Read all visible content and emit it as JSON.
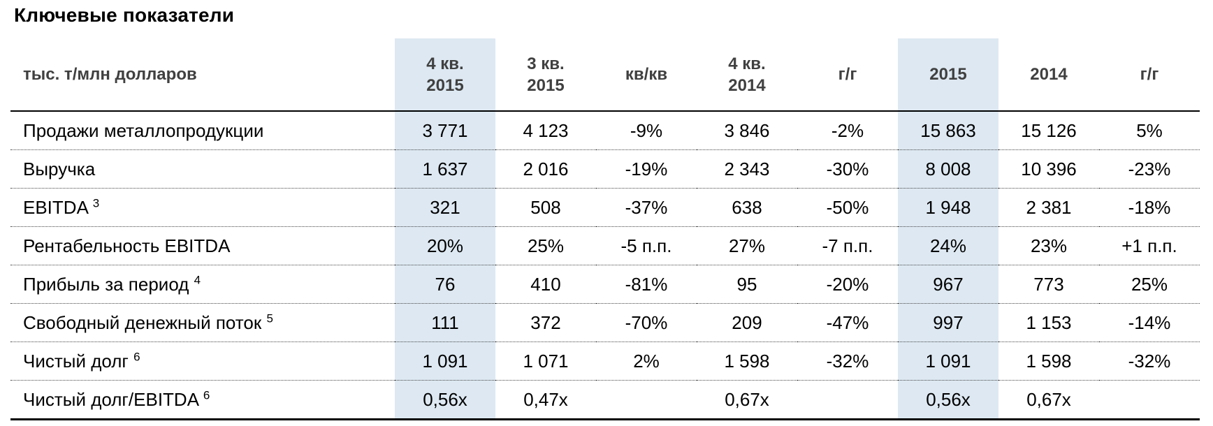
{
  "title": "Ключевые показатели",
  "colors": {
    "highlight": "#dde8f2",
    "header_text": "#404040",
    "body_text": "#000000"
  },
  "table": {
    "unit_header": "тыс. т/млн долларов",
    "columns": [
      {
        "label": "4 кв. 2015",
        "line1": "4 кв.",
        "line2": "2015",
        "highlight": true
      },
      {
        "label": "3 кв. 2015",
        "line1": "3 кв.",
        "line2": "2015",
        "highlight": false
      },
      {
        "label": "кв/кв",
        "line1": "кв/кв",
        "line2": "",
        "highlight": false
      },
      {
        "label": "4 кв. 2014",
        "line1": "4 кв.",
        "line2": "2014",
        "highlight": false
      },
      {
        "label": "г/г",
        "line1": "г/г",
        "line2": "",
        "highlight": false
      },
      {
        "label": "2015",
        "line1": "2015",
        "line2": "",
        "highlight": true
      },
      {
        "label": "2014",
        "line1": "2014",
        "line2": "",
        "highlight": false
      },
      {
        "label": "г/г",
        "line1": "г/г",
        "line2": "",
        "highlight": false
      }
    ],
    "rows": [
      {
        "label": "Продажи металлопродукции",
        "sup": "",
        "values": [
          "3 771",
          "4 123",
          "-9%",
          "3 846",
          "-2%",
          "15 863",
          "15 126",
          "5%"
        ]
      },
      {
        "label": "Выручка",
        "sup": "",
        "values": [
          "1 637",
          "2 016",
          "-19%",
          "2 343",
          "-30%",
          "8 008",
          "10 396",
          "-23%"
        ]
      },
      {
        "label": "EBITDA",
        "sup": "3",
        "values": [
          "321",
          "508",
          "-37%",
          "638",
          "-50%",
          "1 948",
          "2 381",
          "-18%"
        ]
      },
      {
        "label": "Рентабельность EBITDA",
        "sup": "",
        "values": [
          "20%",
          "25%",
          "-5 п.п.",
          "27%",
          "-7 п.п.",
          "24%",
          "23%",
          "+1 п.п."
        ]
      },
      {
        "label": "Прибыль за период",
        "sup": "4",
        "values": [
          "76",
          "410",
          "-81%",
          "95",
          "-20%",
          "967",
          "773",
          "25%"
        ]
      },
      {
        "label": "Свободный денежный поток",
        "sup": "5",
        "values": [
          "111",
          "372",
          "-70%",
          "209",
          "-47%",
          "997",
          "1 153",
          "-14%"
        ]
      },
      {
        "label": "Чистый долг",
        "sup": "6",
        "values": [
          "1 091",
          "1 071",
          "2%",
          "1 598",
          "-32%",
          "1 091",
          "1 598",
          "-32%"
        ]
      },
      {
        "label": "Чистый долг/EBITDA",
        "sup": "6",
        "values": [
          "0,56x",
          "0,47x",
          "",
          "0,67x",
          "",
          "0,56x",
          "0,67x",
          ""
        ]
      }
    ]
  }
}
